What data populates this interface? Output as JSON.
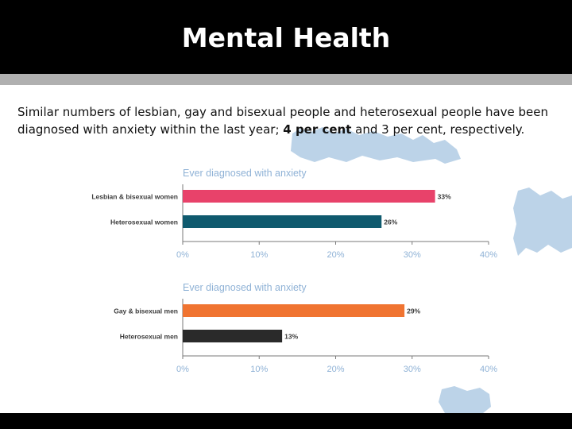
{
  "slide": {
    "title": "Mental Health",
    "body_parts": [
      "Similar numbers of lesbian, gay and bisexual people and heterosexual people have been diagnosed with anxiety within the last year; ",
      "4 per cent",
      " and 3 per cent, respectively."
    ]
  },
  "colors": {
    "title_bar": "#000000",
    "band": "#b0b0b0",
    "map": "#bcd3e8",
    "chart_title": "#8fb2d6",
    "axis": "#7a7a7a"
  },
  "chart_data": [
    {
      "type": "bar",
      "orientation": "horizontal",
      "title": "Ever diagnosed with anxiety",
      "categories": [
        "Lesbian & bisexual women",
        "Heterosexual women"
      ],
      "values": [
        33,
        26
      ],
      "value_labels": [
        "33%",
        "26%"
      ],
      "colors": [
        "#e8426a",
        "#0f5a6e"
      ],
      "xlim": [
        0,
        40
      ],
      "xticks": [
        0,
        10,
        20,
        30,
        40
      ],
      "xtick_labels": [
        "0%",
        "10%",
        "20%",
        "30%",
        "40%"
      ],
      "grid": false
    },
    {
      "type": "bar",
      "orientation": "horizontal",
      "title": "Ever diagnosed with anxiety",
      "categories": [
        "Gay & bisexual men",
        "Heterosexual men"
      ],
      "values": [
        29,
        13
      ],
      "value_labels": [
        "29%",
        "13%"
      ],
      "colors": [
        "#f07431",
        "#2a2a2a"
      ],
      "xlim": [
        0,
        40
      ],
      "xticks": [
        0,
        10,
        20,
        30,
        40
      ],
      "xtick_labels": [
        "0%",
        "10%",
        "20%",
        "30%",
        "40%"
      ],
      "grid": false
    }
  ]
}
